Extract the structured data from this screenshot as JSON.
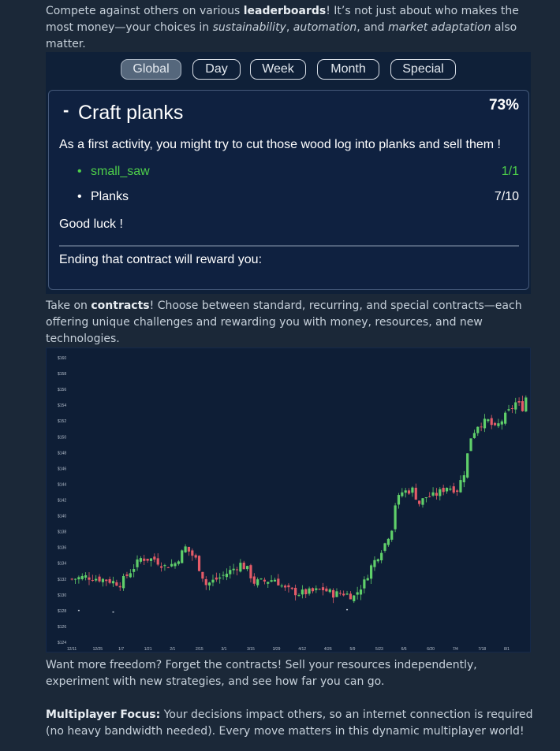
{
  "intro": {
    "t1": "Compete against others on various ",
    "b1": "leaderboards",
    "t2": "! It’s not just about who makes the most money—your choices in ",
    "i1": "sustainability",
    "t3": ", ",
    "i2": "automation",
    "t4": ", and ",
    "i3": "market adaptation",
    "t5": " also matter."
  },
  "leaderboard": {
    "tabs": [
      "Global",
      "Day",
      "Week",
      "Month",
      "Special"
    ],
    "active_tab": "Global"
  },
  "contract_card": {
    "dash": "-",
    "title": "Craft planks",
    "progress": "73%",
    "description": "As a first activity, you might try to cut those wood log into planks and sell them !",
    "requirements": [
      {
        "bullet": "•",
        "name": "small_saw",
        "value": "1/1",
        "done": true
      },
      {
        "bullet": "•",
        "name": "Planks",
        "value": "7/10",
        "done": false
      }
    ],
    "good_luck": "Good luck !",
    "reward_text": "Ending that contract will reward you:"
  },
  "contracts": {
    "t1": "Take on ",
    "b1": "contracts",
    "t2": "! Choose between standard, recurring, and special contracts—each offering unique challenges and rewarding you with money, resources, and new technologies."
  },
  "chart_data": {
    "type": "candlestick",
    "y_ticks": [
      "$160",
      "$158",
      "$156",
      "$154",
      "$152",
      "$150",
      "$148",
      "$146",
      "$144",
      "$142",
      "$140",
      "$138",
      "$136",
      "$134",
      "$132",
      "$130",
      "$128",
      "$126",
      "$124"
    ],
    "x_ticks": [
      "12/11",
      "12/25",
      "1/7",
      "1/21",
      "2/1",
      "2/15",
      "3/1",
      "3/15",
      "3/29",
      "4/12",
      "4/26",
      "5/9",
      "5/23",
      "6/6",
      "6/20",
      "7/4",
      "7/18",
      "8/1"
    ],
    "ylim": [
      124,
      160
    ],
    "close_trend": [
      [
        0,
        132.0
      ],
      [
        4,
        132.3
      ],
      [
        10,
        131.9
      ],
      [
        14,
        131.4
      ],
      [
        18,
        133.5
      ],
      [
        20,
        134.6
      ],
      [
        24,
        134.5
      ],
      [
        27,
        133.6
      ],
      [
        30,
        134.0
      ],
      [
        33,
        136.0
      ],
      [
        36,
        134.5
      ],
      [
        39,
        131.3
      ],
      [
        43,
        132.2
      ],
      [
        46,
        133.0
      ],
      [
        49,
        133.9
      ],
      [
        51,
        133.2
      ],
      [
        53,
        131.6
      ],
      [
        56,
        131.7
      ],
      [
        59,
        132.0
      ],
      [
        62,
        130.7
      ],
      [
        66,
        130.2
      ],
      [
        70,
        130.4
      ],
      [
        73,
        130.7
      ],
      [
        76,
        130.1
      ],
      [
        79,
        130.2
      ],
      [
        82,
        129.8
      ],
      [
        85,
        131.6
      ],
      [
        87,
        133.6
      ],
      [
        89,
        135.0
      ],
      [
        91,
        136.5
      ],
      [
        93,
        138.5
      ],
      [
        94,
        141.5
      ],
      [
        96,
        143.0
      ],
      [
        99,
        143.3
      ],
      [
        101,
        141.6
      ],
      [
        103,
        142.4
      ],
      [
        105,
        142.5
      ],
      [
        107,
        143.0
      ],
      [
        109,
        143.7
      ],
      [
        112,
        143.3
      ],
      [
        114,
        145.5
      ],
      [
        116,
        150.0
      ],
      [
        118,
        151.5
      ],
      [
        121,
        152.0
      ],
      [
        123,
        151.0
      ],
      [
        126,
        152.6
      ],
      [
        129,
        154.3
      ],
      [
        131,
        153.7
      ],
      [
        132,
        155.0
      ]
    ]
  },
  "freedom": {
    "text": "Want more freedom? Forget the contracts! Sell your resources independently, experiment with new strategies, and see how far you can go."
  },
  "multiplayer": {
    "label": "Multiplayer Focus:",
    "text": " Your decisions impact others, so an internet connection is required (no heavy bandwidth needed). Every move matters in this dynamic multiplayer world!"
  },
  "colors": {
    "background": "#1b2838",
    "panel": "#0f2038",
    "done_green": "#4ecf4a",
    "candle_up": "#5fcf6a",
    "candle_down": "#e45b68"
  }
}
